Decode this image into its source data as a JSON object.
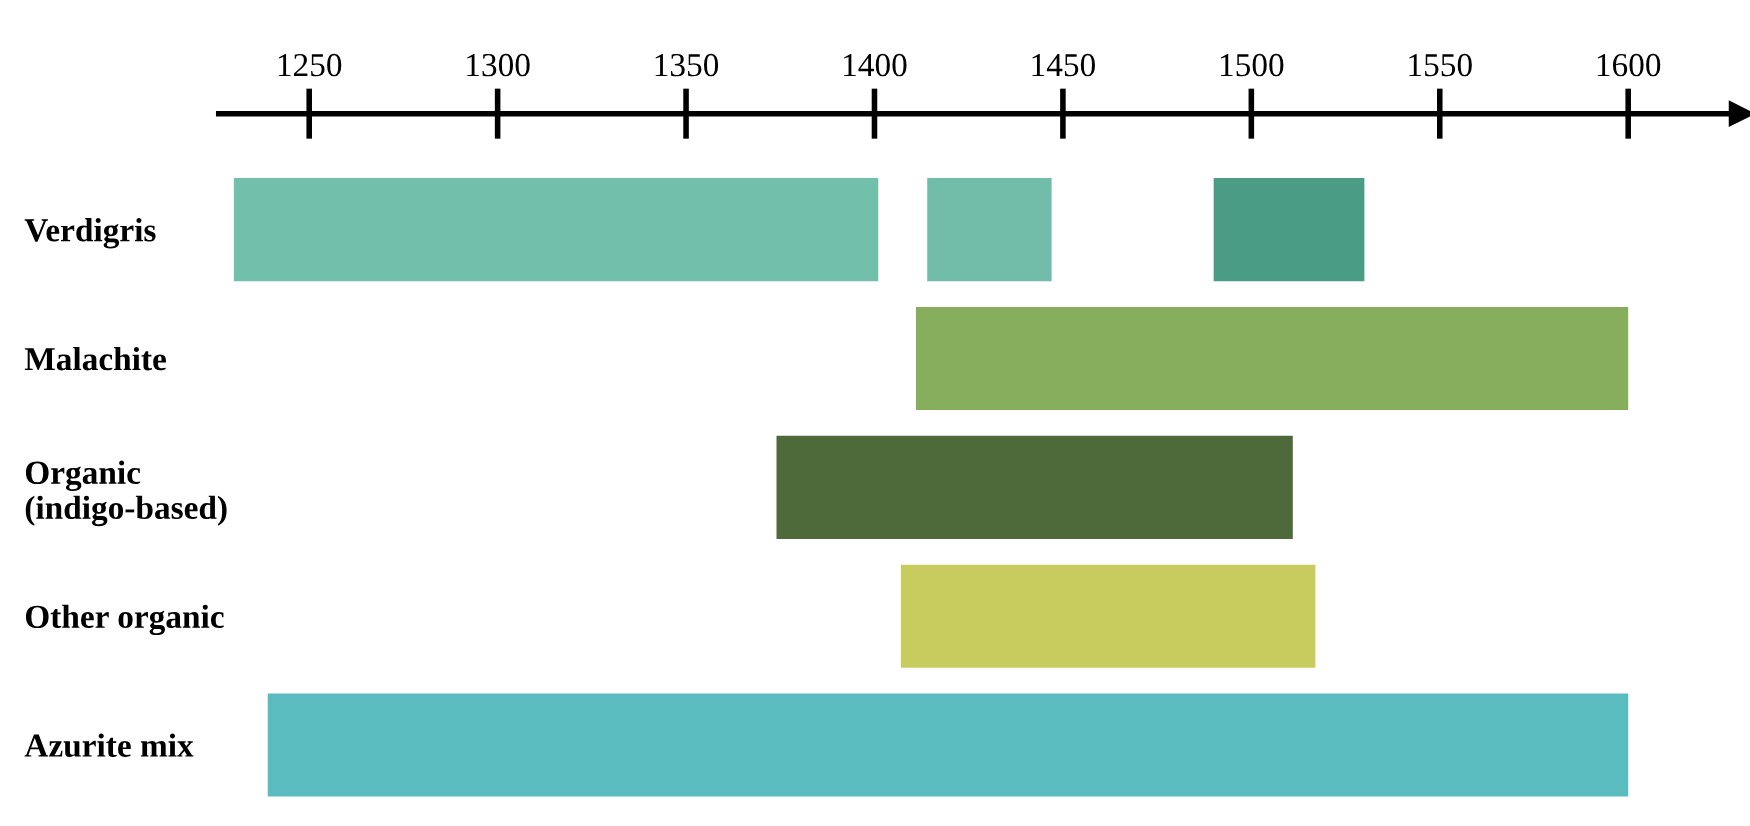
{
  "chart_data": {
    "type": "bar",
    "orientation": "horizontal",
    "categories": [
      "Verdigris",
      "Malachite",
      "Organic\n(indigo-based)",
      "Other organic",
      "Azurite mix"
    ],
    "series": [
      {
        "base": [
          1230,
          1411,
          1374,
          1407,
          1239
        ],
        "values": [
          171,
          189,
          137,
          110,
          361
        ],
        "colors": [
          "#72c0ab",
          "#86ae5c",
          "#4e6a3a",
          "#c8cc5e",
          "#5bbcc0"
        ]
      },
      {
        "base": [
          1414,
          null,
          null,
          null,
          null
        ],
        "values": [
          33,
          null,
          null,
          null,
          null
        ],
        "colors": [
          "#72bdaa",
          null,
          null,
          null,
          null
        ]
      },
      {
        "base": [
          1490,
          null,
          null,
          null,
          null
        ],
        "values": [
          40,
          null,
          null,
          null,
          null
        ],
        "colors": [
          "#4a9c84",
          null,
          null,
          null,
          null
        ]
      }
    ],
    "xlim": [
      1226,
      1630
    ],
    "xticks": [
      1250,
      1300,
      1350,
      1400,
      1450,
      1500,
      1550,
      1600
    ],
    "grid": false,
    "legend": false
  }
}
